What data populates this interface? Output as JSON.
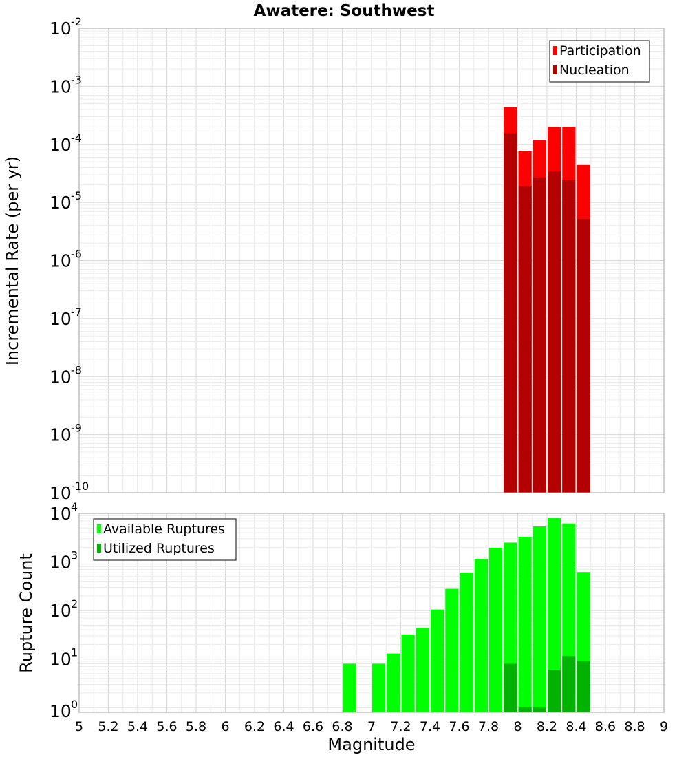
{
  "chart_data": [
    {
      "type": "bar",
      "id": "rate",
      "title": "Awatere: Southwest",
      "ylabel": "Incremental Rate (per yr)",
      "xlabel": "",
      "yscale": "log",
      "ylim": [
        1e-10,
        0.01
      ],
      "xlim": [
        5,
        9
      ],
      "bin_width": 0.1,
      "legend_position": "top-right",
      "x": [
        7.95,
        8.05,
        8.15,
        8.25,
        8.35,
        8.45
      ],
      "series": [
        {
          "name": "Participation",
          "color": "#ff0000",
          "values": [
            0.00044,
            7.6e-05,
            0.00012,
            0.0002,
            0.0002,
            4.4e-05
          ]
        },
        {
          "name": "Nucleation",
          "color": "#b30000",
          "values": [
            0.000155,
            1.9e-05,
            2.7e-05,
            3.4e-05,
            2.4e-05,
            5.2e-06
          ]
        }
      ],
      "ytick_exponents": [
        "-10",
        "-9",
        "-8",
        "-7",
        "-6",
        "-5",
        "-4",
        "-3",
        "-2"
      ]
    },
    {
      "type": "bar",
      "id": "count",
      "title": "",
      "ylabel": "Rupture Count",
      "xlabel": "Magnitude",
      "yscale": "log",
      "ylim": [
        0.8,
        10000
      ],
      "xlim": [
        5,
        9
      ],
      "bin_width": 0.1,
      "legend_position": "top-left",
      "x": [
        6.85,
        6.95,
        7.05,
        7.15,
        7.25,
        7.35,
        7.45,
        7.55,
        7.65,
        7.75,
        7.85,
        7.95,
        8.05,
        8.15,
        8.25,
        8.35,
        8.45
      ],
      "series": [
        {
          "name": "Available Ruptures",
          "color": "#00ff00",
          "values": [
            8,
            0,
            8,
            13,
            32,
            44,
            105,
            280,
            600,
            1150,
            1950,
            2500,
            3300,
            5400,
            8100,
            6200,
            620
          ]
        },
        {
          "name": "Utilized Ruptures",
          "color": "#00b300",
          "values": [
            0,
            0,
            0,
            0,
            0,
            0,
            0,
            0,
            0,
            0,
            0,
            8,
            1,
            1,
            6,
            11.5,
            9
          ]
        }
      ],
      "ytick_exponents": [
        "0",
        "1",
        "2",
        "3",
        "4"
      ],
      "xtick_labels": [
        "5",
        "5.2",
        "5.4",
        "5.6",
        "5.8",
        "6",
        "6.2",
        "6.4",
        "6.6",
        "6.8",
        "7",
        "7.2",
        "7.4",
        "7.6",
        "7.8",
        "8",
        "8.2",
        "8.4",
        "8.6",
        "8.8",
        "9"
      ]
    }
  ]
}
